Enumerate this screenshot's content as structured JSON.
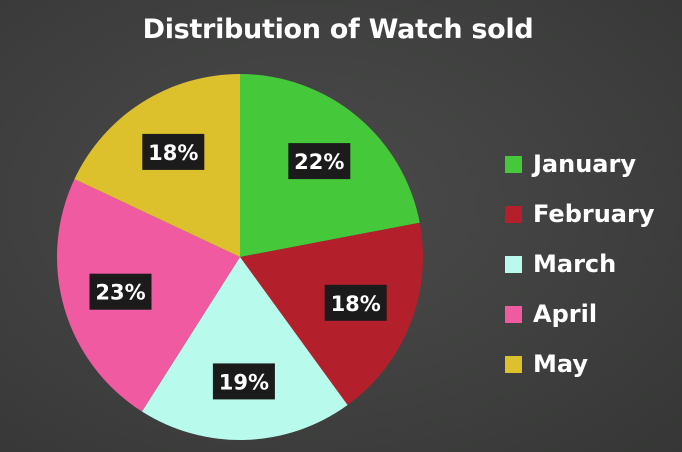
{
  "chart_data": {
    "type": "pie",
    "title": "Distribution of Watch sold",
    "categories": [
      "January",
      "February",
      "March",
      "April",
      "May"
    ],
    "values": [
      22,
      18,
      19,
      23,
      18
    ],
    "labels": [
      "22%",
      "18%",
      "19%",
      "23%",
      "18%"
    ],
    "colors": [
      "#45c93a",
      "#b3202c",
      "#b8fbec",
      "#ef5aa0",
      "#dcc02c"
    ],
    "legend_position": "right"
  },
  "legend": {
    "items": [
      {
        "label": "January",
        "color": "#45c93a"
      },
      {
        "label": "February",
        "color": "#b3202c"
      },
      {
        "label": "March",
        "color": "#b8fbec"
      },
      {
        "label": "April",
        "color": "#ef5aa0"
      },
      {
        "label": "May",
        "color": "#dcc02c"
      }
    ]
  }
}
